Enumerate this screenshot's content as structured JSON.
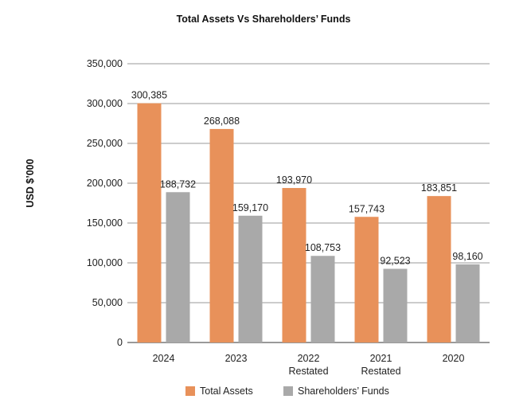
{
  "chart_data": {
    "type": "bar",
    "title": "Total Assets Vs Shareholders’ Funds",
    "ylabel": "USD $’000",
    "xlabel": "",
    "ylim": [
      0,
      350000
    ],
    "yticks": [
      0,
      50000,
      100000,
      150000,
      200000,
      250000,
      300000,
      350000
    ],
    "ytick_labels": [
      "0",
      "50,000",
      "100,000",
      "150,000",
      "200,000",
      "250,000",
      "300,000",
      "350,000"
    ],
    "categories": [
      [
        "2024"
      ],
      [
        "2023"
      ],
      [
        "2022",
        "Restated"
      ],
      [
        "2021",
        "Restated"
      ],
      [
        "2020"
      ]
    ],
    "series": [
      {
        "name": "Total Assets",
        "color": "#e8915a",
        "values": [
          300385,
          268088,
          193970,
          157743,
          183851
        ],
        "labels": [
          "300,385",
          "268,088",
          "193,970",
          "157,743",
          "183,851"
        ]
      },
      {
        "name": "Shareholders’ Funds",
        "color": "#a9a9a9",
        "values": [
          188732,
          159170,
          108753,
          92523,
          98160
        ],
        "labels": [
          "188,732",
          "159,170",
          "108,753",
          "92,523",
          "98,160"
        ]
      }
    ],
    "grid": true,
    "legend_position": "bottom"
  }
}
